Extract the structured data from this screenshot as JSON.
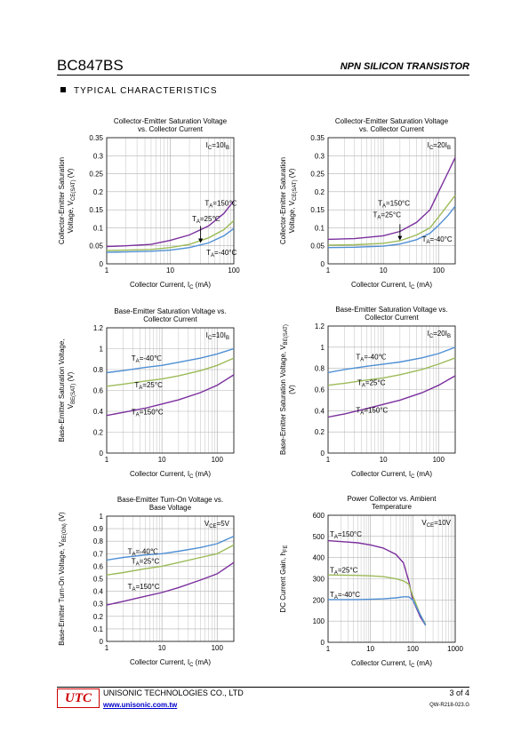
{
  "header": {
    "part": "BC847BS",
    "type": "NPN SILICON TRANSISTOR"
  },
  "section": "TYPICAL CHARACTERISTICS",
  "colors": {
    "purple": "#7b2f9d",
    "green": "#9cbb58",
    "blue": "#4f8fd4",
    "grid": "#b3b3b3",
    "logo": "#c00000",
    "link": "#0000cc"
  },
  "footer": {
    "company": "UNISONIC TECHNOLOGIES CO., LTD",
    "url": "www.unisonic.com.tw",
    "page": "3  of  4",
    "doc": "QW-R218-023.G",
    "logo": "UTC"
  },
  "chart_data": [
    {
      "type": "line",
      "title": [
        "Collector-Emitter Saturation Voltage",
        "vs. Collector Current"
      ],
      "ylabel": [
        "Collector-Emitter Saturation",
        "Voltage, V|CE(SAT)| (V)"
      ],
      "xlabel": "Collector Current, I|C| (mA)",
      "xscale": "log",
      "xlim": [
        1,
        100
      ],
      "ylim": [
        0,
        0.35
      ],
      "xticks": [
        "1",
        "10",
        "100"
      ],
      "yticks": [
        "0",
        "0.05",
        "0.1",
        "0.15",
        "0.2",
        "0.25",
        "0.3",
        "0.35"
      ],
      "condition": "I|C|=10I|B|",
      "series": [
        {
          "name": "T|A|=150℃",
          "color": "purple",
          "x": [
            1,
            2,
            5,
            10,
            20,
            40,
            70,
            100
          ],
          "y": [
            0.048,
            0.05,
            0.054,
            0.065,
            0.08,
            0.105,
            0.14,
            0.175
          ]
        },
        {
          "name": "T|A|=25℃",
          "color": "green",
          "x": [
            1,
            2,
            5,
            10,
            20,
            40,
            70,
            100
          ],
          "y": [
            0.037,
            0.038,
            0.04,
            0.045,
            0.054,
            0.072,
            0.095,
            0.12
          ]
        },
        {
          "name": "T|A|=-40°C",
          "color": "blue",
          "x": [
            1,
            2,
            5,
            10,
            20,
            40,
            70,
            100
          ],
          "y": [
            0.032,
            0.033,
            0.035,
            0.038,
            0.045,
            0.058,
            0.078,
            0.098
          ]
        }
      ],
      "labels": [
        {
          "text": "T|A|=150℃",
          "x": 35,
          "y": 0.162
        },
        {
          "text": "T|A|=25℃",
          "x": 22,
          "y": 0.118
        },
        {
          "text": "T|A|=-40°C",
          "x": 37,
          "y": 0.025
        }
      ],
      "arrow": {
        "x": 30,
        "y1": 0.105,
        "y2": 0.058
      }
    },
    {
      "type": "line",
      "title": [
        "Collector-Emitter Saturation Voltage",
        "vs. Collector Current"
      ],
      "ylabel": [
        "Collector-Emitter Saturation",
        "Voltage, V|CE(SAT)| (V)"
      ],
      "xlabel": "Collector Current, I|C| (mA)",
      "xscale": "log",
      "xlim": [
        1,
        200
      ],
      "ylim": [
        0,
        0.35
      ],
      "xticks": [
        "1",
        "10",
        "100"
      ],
      "yticks": [
        "0",
        "0.05",
        "0.1",
        "0.15",
        "0.2",
        "0.25",
        "0.3",
        "0.35"
      ],
      "condition": "I|C|=20I|B|",
      "series": [
        {
          "name": "T|A|=150℃",
          "color": "purple",
          "x": [
            1,
            3,
            10,
            20,
            40,
            70,
            100,
            150,
            200
          ],
          "y": [
            0.068,
            0.07,
            0.078,
            0.09,
            0.115,
            0.15,
            0.2,
            0.255,
            0.295
          ]
        },
        {
          "name": "T|A|=25℃",
          "color": "green",
          "x": [
            1,
            3,
            10,
            20,
            40,
            70,
            100,
            150,
            200
          ],
          "y": [
            0.052,
            0.053,
            0.057,
            0.064,
            0.08,
            0.1,
            0.13,
            0.165,
            0.19
          ]
        },
        {
          "name": "T|A|=-40°C",
          "color": "blue",
          "x": [
            1,
            3,
            10,
            20,
            40,
            70,
            100,
            150,
            200
          ],
          "y": [
            0.045,
            0.046,
            0.049,
            0.055,
            0.067,
            0.085,
            0.107,
            0.135,
            0.16
          ]
        }
      ],
      "labels": [
        {
          "text": "T|A|=150°C",
          "x": 8,
          "y": 0.162
        },
        {
          "text": "T|A|=25°C",
          "x": 6.5,
          "y": 0.13
        },
        {
          "text": "T|A|=-40°C",
          "x": 50,
          "y": 0.062
        }
      ],
      "arrow": {
        "x": 20,
        "y1": 0.11,
        "y2": 0.065
      }
    },
    {
      "type": "line",
      "title": [
        "Base-Emitter Saturation Voltage vs.",
        "Collector Current"
      ],
      "ylabel": [
        "Base-Emitter Saturation Voltage,",
        "V|BE(SAT)| (V)"
      ],
      "xlabel": "Collector Current, I|C| (mA)",
      "xscale": "log",
      "xlim": [
        1,
        200
      ],
      "ylim": [
        0,
        1.2
      ],
      "xticks": [
        "1",
        "10",
        "100"
      ],
      "yticks": [
        "0",
        "0.2",
        "0.4",
        "0.6",
        "0.8",
        "1",
        "1.2"
      ],
      "condition": "I|C|=10I|B|",
      "series": [
        {
          "name": "T|A|=-40℃",
          "color": "blue",
          "x": [
            1,
            2,
            5,
            10,
            20,
            50,
            100,
            200
          ],
          "y": [
            0.77,
            0.79,
            0.82,
            0.84,
            0.87,
            0.91,
            0.95,
            1.0
          ]
        },
        {
          "name": "T|A|=25°C",
          "color": "green",
          "x": [
            1,
            2,
            5,
            10,
            20,
            50,
            100,
            200
          ],
          "y": [
            0.64,
            0.66,
            0.69,
            0.71,
            0.74,
            0.79,
            0.84,
            0.91
          ]
        },
        {
          "name": "T|A|=150°C",
          "color": "purple",
          "x": [
            1,
            2,
            5,
            10,
            20,
            50,
            100,
            200
          ],
          "y": [
            0.36,
            0.39,
            0.43,
            0.47,
            0.51,
            0.58,
            0.65,
            0.75
          ]
        }
      ],
      "labels": [
        {
          "text": "T|A|=-40℃",
          "x": 2.8,
          "y": 0.885
        },
        {
          "text": "T|A|=25°C",
          "x": 3.2,
          "y": 0.63
        },
        {
          "text": "T|A|=150°C",
          "x": 2.8,
          "y": 0.37
        }
      ]
    },
    {
      "type": "line",
      "title": [
        "Base-Emitter Saturation Voltage vs.",
        "Collector Current"
      ],
      "ylabel": [
        "Base-Emitter Saturation Voltage, V|BE(SAT)|",
        "(V)"
      ],
      "xlabel": "Collector Current, I|C| (mA)",
      "xscale": "log",
      "xlim": [
        1,
        200
      ],
      "ylim": [
        0,
        1.2
      ],
      "xticks": [
        "1",
        "10",
        "100"
      ],
      "yticks": [
        "0",
        "0.2",
        "0.4",
        "0.6",
        "0.8",
        "1",
        "1.2"
      ],
      "condition": "I|C|=20I|B|",
      "series": [
        {
          "name": "T|A|=-40℃",
          "color": "blue",
          "x": [
            1,
            2,
            5,
            10,
            20,
            50,
            100,
            200
          ],
          "y": [
            0.76,
            0.79,
            0.82,
            0.84,
            0.86,
            0.9,
            0.94,
            1.0
          ]
        },
        {
          "name": "T|A|=25°C",
          "color": "green",
          "x": [
            1,
            2,
            5,
            10,
            20,
            50,
            100,
            200
          ],
          "y": [
            0.64,
            0.66,
            0.69,
            0.71,
            0.74,
            0.79,
            0.84,
            0.9
          ]
        },
        {
          "name": "T|A|=150°C",
          "color": "purple",
          "x": [
            1,
            2,
            5,
            10,
            20,
            50,
            100,
            200
          ],
          "y": [
            0.34,
            0.37,
            0.42,
            0.46,
            0.5,
            0.57,
            0.64,
            0.73
          ]
        }
      ],
      "labels": [
        {
          "text": "T|A|=-40℃",
          "x": 3.2,
          "y": 0.885
        },
        {
          "text": "T|A|=25°C",
          "x": 3.4,
          "y": 0.64
        },
        {
          "text": "T|A|=150°C",
          "x": 3.2,
          "y": 0.38
        }
      ]
    },
    {
      "type": "line",
      "title": [
        "Base-Emitter Turn-On Voltage vs.",
        "Base Voltage"
      ],
      "ylabel": [
        "Base-Emitter Turn-On Voltage, V|BE(ON)| (V)"
      ],
      "xlabel": "Collector Current, I|C| (mA)",
      "xscale": "log",
      "xlim": [
        1,
        200
      ],
      "ylim": [
        0,
        1
      ],
      "xticks": [
        "1",
        "10",
        "100"
      ],
      "yticks": [
        "0",
        "0.1",
        "0.2",
        "0.3",
        "0.4",
        "0.5",
        "0.6",
        "0.7",
        "0.8",
        "0.9",
        "1"
      ],
      "condition": "V|CE|=5V",
      "series": [
        {
          "name": "T|A|=-40℃",
          "color": "blue",
          "x": [
            1,
            2,
            5,
            10,
            20,
            50,
            100,
            200
          ],
          "y": [
            0.65,
            0.67,
            0.69,
            0.7,
            0.72,
            0.75,
            0.78,
            0.84
          ]
        },
        {
          "name": "T|A|=25°C",
          "color": "green",
          "x": [
            1,
            2,
            5,
            10,
            20,
            50,
            100,
            200
          ],
          "y": [
            0.53,
            0.55,
            0.58,
            0.6,
            0.63,
            0.67,
            0.7,
            0.77
          ]
        },
        {
          "name": "T|A|=150°C",
          "color": "purple",
          "x": [
            1,
            2,
            5,
            10,
            20,
            50,
            100,
            200
          ],
          "y": [
            0.29,
            0.32,
            0.36,
            0.39,
            0.43,
            0.49,
            0.54,
            0.63
          ]
        }
      ],
      "labels": [
        {
          "text": "T|A|=-40℃",
          "x": 2.4,
          "y": 0.7
        },
        {
          "text": "T|A|=25°C",
          "x": 2.8,
          "y": 0.62
        },
        {
          "text": "T|A|=150°C",
          "x": 2.4,
          "y": 0.42
        }
      ]
    },
    {
      "type": "line",
      "title": [
        "Power Collector vs. Ambient",
        "Temperature"
      ],
      "ylabel": [
        "DC Current Gain, h|FE|"
      ],
      "xlabel": "Collector Current, I|C| (mA)",
      "xscale": "log",
      "xlim": [
        1,
        1000
      ],
      "ylim": [
        0,
        600
      ],
      "xticks": [
        "1",
        "10",
        "100",
        "1000"
      ],
      "yticks": [
        "0",
        "100",
        "200",
        "300",
        "400",
        "500",
        "600"
      ],
      "condition": "V|CE|=10V",
      "series": [
        {
          "name": "T|A|=150°C",
          "color": "purple",
          "x": [
            1,
            5,
            10,
            20,
            40,
            60,
            80,
            100,
            150,
            200
          ],
          "y": [
            480,
            470,
            460,
            445,
            415,
            375,
            290,
            200,
            120,
            80
          ]
        },
        {
          "name": "T|A|=25°C",
          "color": "green",
          "x": [
            1,
            5,
            10,
            20,
            40,
            60,
            80,
            100,
            150,
            200
          ],
          "y": [
            318,
            316,
            314,
            310,
            300,
            290,
            275,
            220,
            130,
            85
          ]
        },
        {
          "name": "T|A|=-40°C",
          "color": "blue",
          "x": [
            1,
            5,
            10,
            20,
            40,
            60,
            80,
            100,
            150,
            200
          ],
          "y": [
            202,
            202,
            203,
            205,
            210,
            215,
            215,
            200,
            130,
            80
          ]
        }
      ],
      "labels": [
        {
          "text": "T|A|=150°C",
          "x": 1.1,
          "y": 500
        },
        {
          "text": "T|A|=25°C",
          "x": 1.1,
          "y": 330
        },
        {
          "text": "T|A|=-40°C",
          "x": 1.1,
          "y": 215
        }
      ]
    }
  ]
}
